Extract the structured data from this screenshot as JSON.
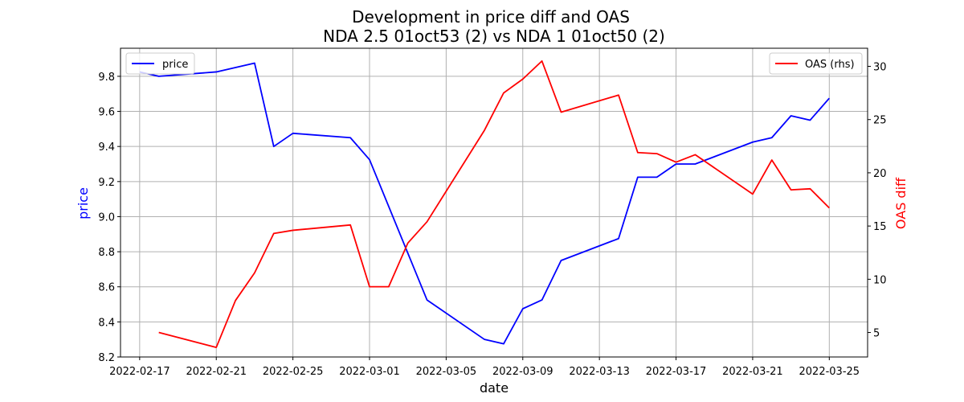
{
  "chart_data": {
    "type": "line",
    "title": "Development in price diff and OAS",
    "subtitle": "NDA 2.5 01oct53 (2) vs NDA 1 01oct50 (2)",
    "xlabel": "date",
    "ylabel_left": "price",
    "ylabel_right": "OAS diff",
    "xlim": [
      "2022-02-16",
      "2022-03-27"
    ],
    "ylim_left": [
      8.2,
      9.96
    ],
    "ylim_right": [
      2.7,
      31.7
    ],
    "x_ticks": [
      "2022-02-17",
      "2022-02-21",
      "2022-02-25",
      "2022-03-01",
      "2022-03-05",
      "2022-03-09",
      "2022-03-13",
      "2022-03-17",
      "2022-03-21",
      "2022-03-25"
    ],
    "y_ticks_left": [
      8.2,
      8.4,
      8.6,
      8.8,
      9.0,
      9.2,
      9.4,
      9.6,
      9.8
    ],
    "y_ticks_right": [
      5,
      10,
      15,
      20,
      25,
      30
    ],
    "grid": true,
    "series": [
      {
        "name": "price",
        "axis": "left",
        "color": "#0000ff",
        "legend_position": "top-left",
        "points": [
          [
            "2022-02-17",
            9.825
          ],
          [
            "2022-02-18",
            9.8
          ],
          [
            "2022-02-21",
            9.825
          ],
          [
            "2022-02-23",
            9.875
          ],
          [
            "2022-02-24",
            9.4
          ],
          [
            "2022-02-25",
            9.475
          ],
          [
            "2022-02-28",
            9.45
          ],
          [
            "2022-03-01",
            9.325
          ],
          [
            "2022-03-04",
            8.525
          ],
          [
            "2022-03-07",
            8.3
          ],
          [
            "2022-03-08",
            8.275
          ],
          [
            "2022-03-09",
            8.475
          ],
          [
            "2022-03-10",
            8.525
          ],
          [
            "2022-03-11",
            8.75
          ],
          [
            "2022-03-14",
            8.875
          ],
          [
            "2022-03-15",
            9.225
          ],
          [
            "2022-03-16",
            9.225
          ],
          [
            "2022-03-17",
            9.3
          ],
          [
            "2022-03-18",
            9.3
          ],
          [
            "2022-03-21",
            9.425
          ],
          [
            "2022-03-22",
            9.45
          ],
          [
            "2022-03-23",
            9.575
          ],
          [
            "2022-03-24",
            9.55
          ],
          [
            "2022-03-25",
            9.675
          ]
        ]
      },
      {
        "name": "OAS (rhs)",
        "axis": "right",
        "color": "#ff0000",
        "legend_position": "top-right",
        "points": [
          [
            "2022-02-18",
            5.0
          ],
          [
            "2022-02-21",
            3.6
          ],
          [
            "2022-02-22",
            8.0
          ],
          [
            "2022-02-23",
            10.6
          ],
          [
            "2022-02-24",
            14.3
          ],
          [
            "2022-02-25",
            14.6
          ],
          [
            "2022-02-28",
            15.1
          ],
          [
            "2022-03-01",
            9.3
          ],
          [
            "2022-03-02",
            9.3
          ],
          [
            "2022-03-03",
            13.4
          ],
          [
            "2022-03-04",
            15.4
          ],
          [
            "2022-03-07",
            24.0
          ],
          [
            "2022-03-08",
            27.5
          ],
          [
            "2022-03-09",
            28.8
          ],
          [
            "2022-03-10",
            30.5
          ],
          [
            "2022-03-11",
            25.7
          ],
          [
            "2022-03-14",
            27.3
          ],
          [
            "2022-03-15",
            21.9
          ],
          [
            "2022-03-16",
            21.8
          ],
          [
            "2022-03-17",
            21.0
          ],
          [
            "2022-03-18",
            21.7
          ],
          [
            "2022-03-21",
            18.0
          ],
          [
            "2022-03-22",
            21.2
          ],
          [
            "2022-03-23",
            18.4
          ],
          [
            "2022-03-24",
            18.5
          ],
          [
            "2022-03-25",
            16.7
          ]
        ]
      }
    ]
  }
}
